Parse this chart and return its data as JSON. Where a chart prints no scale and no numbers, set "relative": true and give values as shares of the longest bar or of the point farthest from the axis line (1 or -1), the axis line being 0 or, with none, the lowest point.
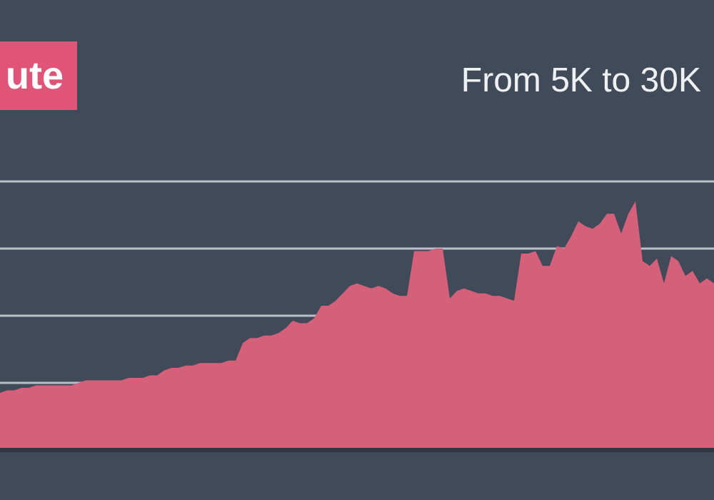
{
  "chart_data": {
    "type": "area",
    "title": "ute",
    "subtitle": "From 5K to 30K",
    "relative": true,
    "grid": true,
    "color": "#d4607a",
    "categories": [
      null,
      null,
      null,
      null,
      null,
      null,
      null,
      null,
      null,
      null,
      null,
      null,
      null,
      null,
      null,
      null,
      null,
      null,
      null,
      null,
      null,
      null,
      null,
      null,
      null,
      null,
      null,
      null,
      null,
      null,
      null,
      null,
      null,
      null,
      null,
      null,
      null,
      null,
      null,
      null,
      null,
      null,
      null,
      null,
      null,
      null,
      null,
      null,
      null,
      null,
      null,
      null,
      null,
      null,
      null,
      null,
      null,
      null,
      null,
      null,
      null,
      null,
      null,
      null,
      null,
      null,
      null,
      null,
      null,
      null,
      null,
      null,
      null,
      null,
      null,
      null,
      null,
      null,
      null,
      null,
      null,
      null,
      null,
      null,
      null,
      null,
      null,
      null,
      null,
      null,
      null,
      null,
      null,
      null,
      null,
      null,
      null,
      null,
      null,
      null,
      null
    ],
    "values": [
      0.23,
      0.24,
      0.24,
      0.25,
      0.25,
      0.26,
      0.26,
      0.26,
      0.26,
      0.26,
      0.26,
      0.27,
      0.28,
      0.28,
      0.28,
      0.28,
      0.28,
      0.28,
      0.29,
      0.29,
      0.29,
      0.3,
      0.3,
      0.32,
      0.33,
      0.33,
      0.34,
      0.34,
      0.35,
      0.35,
      0.35,
      0.35,
      0.36,
      0.36,
      0.43,
      0.45,
      0.45,
      0.46,
      0.46,
      0.47,
      0.49,
      0.52,
      0.51,
      0.51,
      0.53,
      0.58,
      0.58,
      0.6,
      0.63,
      0.66,
      0.67,
      0.66,
      0.65,
      0.66,
      0.65,
      0.63,
      0.62,
      0.62,
      0.8,
      0.8,
      0.8,
      0.81,
      0.81,
      0.61,
      0.64,
      0.65,
      0.64,
      0.63,
      0.63,
      0.62,
      0.62,
      0.61,
      0.6,
      0.79,
      0.79,
      0.8,
      0.74,
      0.74,
      0.82,
      0.81,
      0.86,
      0.92,
      0.9,
      0.89,
      0.91,
      0.95,
      0.95,
      0.87,
      0.95,
      1,
      0.76,
      0.74,
      0.77,
      0.67,
      0.78,
      0.76,
      0.7,
      0.72,
      0.67,
      0.69,
      0.67
    ]
  }
}
